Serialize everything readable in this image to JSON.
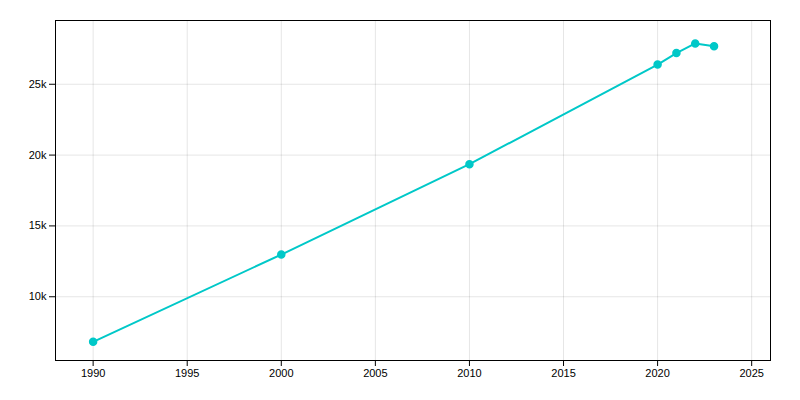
{
  "chart_data": {
    "type": "line",
    "x": [
      1990,
      2000,
      2010,
      2020,
      2021,
      2022,
      2023
    ],
    "values": [
      6820,
      12980,
      19355,
      26390,
      27200,
      27880,
      27680
    ],
    "color": "#00c8c8",
    "marker": "circle",
    "xlim": [
      1988,
      2026
    ],
    "ylim": [
      5500,
      29500
    ],
    "xticks": [
      1990,
      1995,
      2000,
      2005,
      2010,
      2015,
      2020,
      2025
    ],
    "yticks": [
      {
        "value": 10000,
        "label": "10k"
      },
      {
        "value": 15000,
        "label": "15k"
      },
      {
        "value": 20000,
        "label": "20k"
      },
      {
        "value": 25000,
        "label": "25k"
      }
    ],
    "grid": true
  }
}
